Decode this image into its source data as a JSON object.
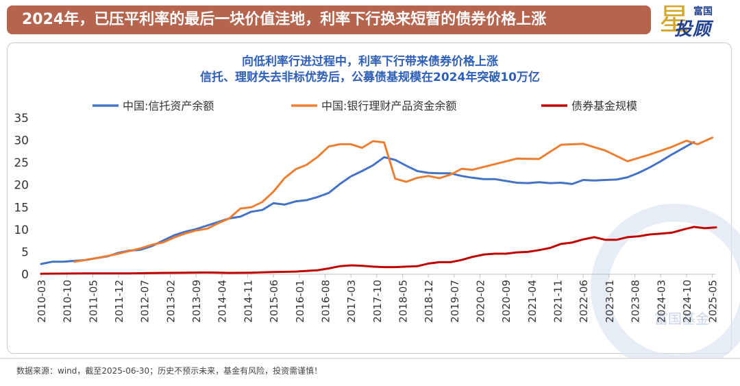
{
  "header": {
    "title": "2024年，已压平利率的最后一块价值洼地，利率下行换来短暂的债券价格上涨",
    "logo_top": "富国",
    "logo_main": "投顾",
    "logo_star": "星",
    "watermark": "富国基金"
  },
  "footer": {
    "text": "数据来源：wind，截至2025-06-30；历史不预示未来，基金有风险，投资需谨慎！"
  },
  "colors": {
    "banner": "#b5644e",
    "trust": "#4472c4",
    "wealth": "#ed7d31",
    "bond": "#c00000"
  },
  "chart_data": {
    "type": "line",
    "subtitle_lines": [
      "向低利率行进过程中，利率下行带来债券价格上涨",
      "信托、理财失去非标优势后，公募债基规模在2024年突破10万亿"
    ],
    "ylim": [
      0,
      35
    ],
    "yticks": [
      0,
      5,
      10,
      15,
      20,
      25,
      30,
      35
    ],
    "grid": false,
    "legend_position": "top",
    "xtick_labels": [
      "2010-03",
      "2010-10",
      "2011-05",
      "2011-12",
      "2012-07",
      "2013-02",
      "2013-09",
      "2014-04",
      "2014-11",
      "2015-06",
      "2016-01",
      "2016-08",
      "2017-03",
      "2017-10",
      "2018-05",
      "2018-12",
      "2019-07",
      "2020-02",
      "2020-09",
      "2021-04",
      "2021-11",
      "2022-06",
      "2023-01",
      "2023-08",
      "2024-03",
      "2024-10",
      "2025-05"
    ],
    "series": [
      {
        "name": "中国:信托资产余额",
        "color": "#4472c4",
        "points": [
          [
            "2010-03",
            2.3
          ],
          [
            "2010-06",
            2.8
          ],
          [
            "2010-09",
            2.8
          ],
          [
            "2010-12",
            3.0
          ],
          [
            "2011-03",
            3.2
          ],
          [
            "2011-06",
            3.6
          ],
          [
            "2011-09",
            4.0
          ],
          [
            "2011-12",
            4.8
          ],
          [
            "2012-03",
            5.3
          ],
          [
            "2012-06",
            5.5
          ],
          [
            "2012-09",
            6.3
          ],
          [
            "2012-12",
            7.5
          ],
          [
            "2013-03",
            8.7
          ],
          [
            "2013-06",
            9.5
          ],
          [
            "2013-09",
            10.1
          ],
          [
            "2013-12",
            10.9
          ],
          [
            "2014-03",
            11.7
          ],
          [
            "2014-06",
            12.5
          ],
          [
            "2014-09",
            12.9
          ],
          [
            "2014-12",
            14.0
          ],
          [
            "2015-03",
            14.4
          ],
          [
            "2015-06",
            15.9
          ],
          [
            "2015-09",
            15.6
          ],
          [
            "2015-12",
            16.3
          ],
          [
            "2016-03",
            16.6
          ],
          [
            "2016-06",
            17.3
          ],
          [
            "2016-09",
            18.2
          ],
          [
            "2016-12",
            20.2
          ],
          [
            "2017-03",
            21.9
          ],
          [
            "2017-06",
            23.1
          ],
          [
            "2017-09",
            24.4
          ],
          [
            "2017-12",
            26.2
          ],
          [
            "2018-03",
            25.6
          ],
          [
            "2018-06",
            24.3
          ],
          [
            "2018-09",
            23.1
          ],
          [
            "2018-12",
            22.7
          ],
          [
            "2019-03",
            22.6
          ],
          [
            "2019-06",
            22.6
          ],
          [
            "2019-09",
            22.0
          ],
          [
            "2019-12",
            21.6
          ],
          [
            "2020-03",
            21.3
          ],
          [
            "2020-06",
            21.3
          ],
          [
            "2020-09",
            20.9
          ],
          [
            "2020-12",
            20.5
          ],
          [
            "2021-03",
            20.4
          ],
          [
            "2021-06",
            20.6
          ],
          [
            "2021-09",
            20.4
          ],
          [
            "2021-12",
            20.5
          ],
          [
            "2022-03",
            20.2
          ],
          [
            "2022-06",
            21.1
          ],
          [
            "2022-09",
            21.0
          ],
          [
            "2022-12",
            21.1
          ],
          [
            "2023-03",
            21.2
          ],
          [
            "2023-06",
            21.7
          ],
          [
            "2023-09",
            22.7
          ],
          [
            "2023-12",
            23.9
          ],
          [
            "2024-03",
            25.3
          ],
          [
            "2024-06",
            26.8
          ],
          [
            "2024-09",
            28.2
          ],
          [
            "2024-12",
            29.6
          ]
        ]
      },
      {
        "name": "中国:银行理财产品资金余额",
        "color": "#ed7d31",
        "points": [
          [
            "2010-12",
            2.8
          ],
          [
            "2011-03",
            3.2
          ],
          [
            "2011-06",
            3.6
          ],
          [
            "2011-09",
            4.1
          ],
          [
            "2011-12",
            4.6
          ],
          [
            "2012-03",
            5.2
          ],
          [
            "2012-06",
            5.8
          ],
          [
            "2012-09",
            6.6
          ],
          [
            "2012-12",
            7.1
          ],
          [
            "2013-03",
            8.2
          ],
          [
            "2013-06",
            9.1
          ],
          [
            "2013-09",
            9.8
          ],
          [
            "2013-12",
            10.2
          ],
          [
            "2014-03",
            11.4
          ],
          [
            "2014-06",
            12.5
          ],
          [
            "2014-09",
            14.7
          ],
          [
            "2014-12",
            15.0
          ],
          [
            "2015-03",
            16.2
          ],
          [
            "2015-06",
            18.5
          ],
          [
            "2015-09",
            21.5
          ],
          [
            "2015-12",
            23.5
          ],
          [
            "2016-03",
            24.5
          ],
          [
            "2016-06",
            26.3
          ],
          [
            "2016-09",
            28.6
          ],
          [
            "2016-12",
            29.1
          ],
          [
            "2017-03",
            29.1
          ],
          [
            "2017-06",
            28.3
          ],
          [
            "2017-09",
            29.8
          ],
          [
            "2017-12",
            29.5
          ],
          [
            "2018-03",
            21.4
          ],
          [
            "2018-06",
            20.7
          ],
          [
            "2018-09",
            21.6
          ],
          [
            "2018-12",
            22.0
          ],
          [
            "2019-03",
            21.5
          ],
          [
            "2019-06",
            22.3
          ],
          [
            "2019-09",
            23.6
          ],
          [
            "2019-12",
            23.4
          ],
          [
            "2020-12",
            25.9
          ],
          [
            "2021-06",
            25.8
          ],
          [
            "2021-12",
            29.0
          ],
          [
            "2022-06",
            29.2
          ],
          [
            "2022-12",
            27.7
          ],
          [
            "2023-06",
            25.3
          ],
          [
            "2023-12",
            26.8
          ],
          [
            "2024-06",
            28.5
          ],
          [
            "2024-10",
            29.9
          ],
          [
            "2025-01",
            29.1
          ],
          [
            "2025-05",
            30.6
          ]
        ]
      },
      {
        "name": "债券基金规模",
        "color": "#c00000",
        "points": [
          [
            "2010-03",
            0.1
          ],
          [
            "2011-03",
            0.2
          ],
          [
            "2012-03",
            0.2
          ],
          [
            "2012-12",
            0.3
          ],
          [
            "2013-06",
            0.35
          ],
          [
            "2013-12",
            0.4
          ],
          [
            "2014-06",
            0.3
          ],
          [
            "2014-12",
            0.35
          ],
          [
            "2015-06",
            0.5
          ],
          [
            "2015-12",
            0.6
          ],
          [
            "2016-06",
            0.9
          ],
          [
            "2016-09",
            1.3
          ],
          [
            "2016-12",
            1.8
          ],
          [
            "2017-03",
            2.0
          ],
          [
            "2017-06",
            1.9
          ],
          [
            "2017-09",
            1.7
          ],
          [
            "2017-12",
            1.6
          ],
          [
            "2018-03",
            1.6
          ],
          [
            "2018-06",
            1.7
          ],
          [
            "2018-09",
            1.8
          ],
          [
            "2018-12",
            2.4
          ],
          [
            "2019-03",
            2.7
          ],
          [
            "2019-06",
            2.7
          ],
          [
            "2019-09",
            3.2
          ],
          [
            "2019-12",
            3.9
          ],
          [
            "2020-03",
            4.4
          ],
          [
            "2020-06",
            4.6
          ],
          [
            "2020-09",
            4.6
          ],
          [
            "2020-12",
            4.9
          ],
          [
            "2021-03",
            5.0
          ],
          [
            "2021-06",
            5.4
          ],
          [
            "2021-09",
            5.9
          ],
          [
            "2021-12",
            6.8
          ],
          [
            "2022-03",
            7.1
          ],
          [
            "2022-06",
            7.8
          ],
          [
            "2022-09",
            8.3
          ],
          [
            "2022-12",
            7.7
          ],
          [
            "2023-03",
            7.7
          ],
          [
            "2023-06",
            8.3
          ],
          [
            "2023-09",
            8.5
          ],
          [
            "2023-12",
            8.9
          ],
          [
            "2024-03",
            9.1
          ],
          [
            "2024-06",
            9.3
          ],
          [
            "2024-09",
            10.0
          ],
          [
            "2024-12",
            10.6
          ],
          [
            "2025-03",
            10.3
          ],
          [
            "2025-06",
            10.5
          ]
        ]
      }
    ]
  }
}
